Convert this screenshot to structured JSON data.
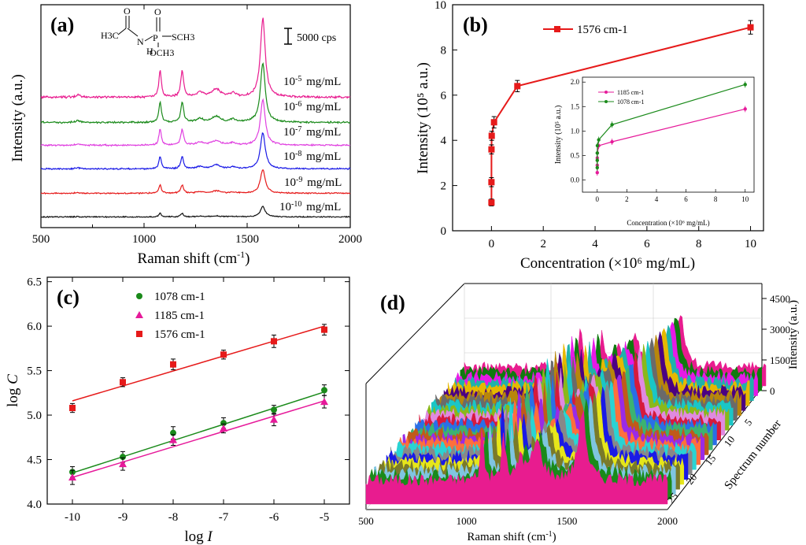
{
  "chart_data": [
    {
      "panel": "a",
      "type": "line",
      "panel_label": "(a)",
      "xlabel": "Raman shift (cm-1)",
      "ylabel": "Intensity (a.u.)",
      "xlim": [
        500,
        2000
      ],
      "x_ticks": [
        "500",
        "1000",
        "1500",
        "2000"
      ],
      "scale_bar": "5000 cps",
      "molecule": {
        "left": "H3C",
        "nh": "N",
        "h": "H",
        "o1": "O",
        "o2": "O",
        "p": "P",
        "s": "SCH3",
        "och3": "OCH3"
      },
      "peaks": [
        1078,
        1185,
        1576
      ],
      "series": [
        {
          "name": "10-5 mg/mL",
          "exp": "-5",
          "color": "#e81c8f",
          "offset": 5,
          "scale": 1.0
        },
        {
          "name": "10-6 mg/mL",
          "exp": "-6",
          "color": "#1a8a1a",
          "offset": 4,
          "scale": 0.72
        },
        {
          "name": "10-7 mg/mL",
          "exp": "-7",
          "color": "#e040e0",
          "offset": 3,
          "scale": 0.55
        },
        {
          "name": "10-8 mg/mL",
          "exp": "-8",
          "color": "#1a1ae6",
          "offset": 2,
          "scale": 0.42
        },
        {
          "name": "10-9 mg/mL",
          "exp": "-9",
          "color": "#e61a1a",
          "offset": 1,
          "scale": 0.22
        },
        {
          "name": "10-10 mg/mL",
          "exp": "-10",
          "color": "#111111",
          "offset": 0,
          "scale": 0.09
        }
      ]
    },
    {
      "panel": "b",
      "type": "line",
      "panel_label": "(b)",
      "xlabel": "Concentration (×10⁶ mg/mL)",
      "ylabel": "Intensity (10⁵ a.u.)",
      "xlim": [
        -1.5,
        10.5
      ],
      "ylim": [
        0,
        10
      ],
      "x_ticks": [
        0,
        2,
        4,
        6,
        8,
        10
      ],
      "y_ticks": [
        0,
        2,
        4,
        6,
        8,
        10
      ],
      "series": [
        {
          "name": "1576 cm-1",
          "color": "#e61a1a",
          "x": [
            1e-05,
            0.0001,
            0.001,
            0.01,
            0.1,
            1,
            10
          ],
          "y": [
            1.25,
            2.15,
            3.6,
            4.2,
            4.8,
            6.4,
            9.0
          ],
          "err": [
            0.15,
            0.2,
            0.2,
            0.2,
            0.25,
            0.25,
            0.3
          ]
        }
      ],
      "inset": {
        "xlabel": "Concentration (×10⁶ mg/mL)",
        "ylabel": "Intensity (10⁵ a.u.)",
        "xlim": [
          -1,
          10.6
        ],
        "ylim": [
          -0.25,
          2.1
        ],
        "x_ticks": [
          0,
          2,
          4,
          6,
          8,
          10
        ],
        "y_ticks": [
          "0.0",
          "0.5",
          "1.0",
          "1.5",
          "2.0"
        ],
        "series": [
          {
            "name": "1185 cm-1",
            "color": "#e61a9a",
            "x": [
              1e-05,
              0.0001,
              0.001,
              0.01,
              0.1,
              1,
              10
            ],
            "y": [
              0.15,
              0.3,
              0.45,
              0.55,
              0.7,
              0.78,
              1.45
            ]
          },
          {
            "name": "1078 cm-1",
            "color": "#1a8a1a",
            "x": [
              1e-05,
              0.0001,
              0.001,
              0.01,
              0.1,
              1,
              10
            ],
            "y": [
              0.25,
              0.4,
              0.55,
              0.7,
              0.82,
              1.13,
              1.95
            ]
          }
        ]
      }
    },
    {
      "panel": "c",
      "type": "scatter",
      "panel_label": "(c)",
      "xlabel": "log I",
      "ylabel": "log C",
      "xlim": [
        -10.5,
        -4.5
      ],
      "ylim": [
        4.0,
        6.55
      ],
      "x_ticks": [
        -10,
        -9,
        -8,
        -7,
        -6,
        -5
      ],
      "y_ticks": [
        "4.0",
        "4.5",
        "5.0",
        "5.5",
        "6.0",
        "6.5"
      ],
      "x": [
        -10,
        -9,
        -8,
        -7,
        -6,
        -5
      ],
      "series": [
        {
          "name": "1078 cm-1",
          "color": "#1a8a1a",
          "marker": "circle",
          "y": [
            4.36,
            4.53,
            4.8,
            4.91,
            5.06,
            5.28
          ],
          "err": [
            0.06,
            0.06,
            0.07,
            0.06,
            0.05,
            0.06
          ],
          "fit": [
            4.35,
            5.26
          ]
        },
        {
          "name": "1185 cm-1",
          "color": "#e61a9a",
          "marker": "triangle",
          "y": [
            4.3,
            4.45,
            4.72,
            4.85,
            4.95,
            5.15
          ],
          "err": [
            0.08,
            0.07,
            0.06,
            0.05,
            0.07,
            0.07
          ],
          "fit": [
            4.3,
            5.16
          ]
        },
        {
          "name": "1576 cm-1",
          "color": "#e61a1a",
          "marker": "square",
          "y": [
            5.08,
            5.37,
            5.57,
            5.68,
            5.83,
            5.96
          ],
          "err": [
            0.05,
            0.05,
            0.06,
            0.05,
            0.07,
            0.06
          ],
          "fit": [
            5.16,
            6.0
          ]
        }
      ]
    },
    {
      "panel": "d",
      "type": "area",
      "panel_label": "(d)",
      "xlabel": "Raman shift (cm-1)",
      "ylabel": "Spectrum number",
      "zlabel": "Intensity (a.u.)",
      "x_ticks": [
        "500",
        "1000",
        "1500",
        "2000"
      ],
      "y_ticks": [
        "5",
        "10",
        "15",
        "20",
        "25"
      ],
      "z_ticks": [
        "0",
        "1500",
        "3000",
        "4500"
      ],
      "spectrum_count": 25,
      "colors": [
        "#e81c8f",
        "#1a8a1a",
        "#7fc5e0",
        "#7a7a2a",
        "#e6e61a",
        "#1a1ae6",
        "#888888",
        "#2ad3d3",
        "#ff6f3c",
        "#9a2ae6",
        "#c05a1a",
        "#3cb371",
        "#2a6fe6",
        "#d61a3c",
        "#e08ae0",
        "#8ab81a",
        "#1ac6c6",
        "#6a6a6a",
        "#b8860b",
        "#4b0082",
        "#e6b800",
        "#20b2aa",
        "#e61ae6",
        "#0f7a0f",
        "#e81c8f"
      ]
    }
  ]
}
